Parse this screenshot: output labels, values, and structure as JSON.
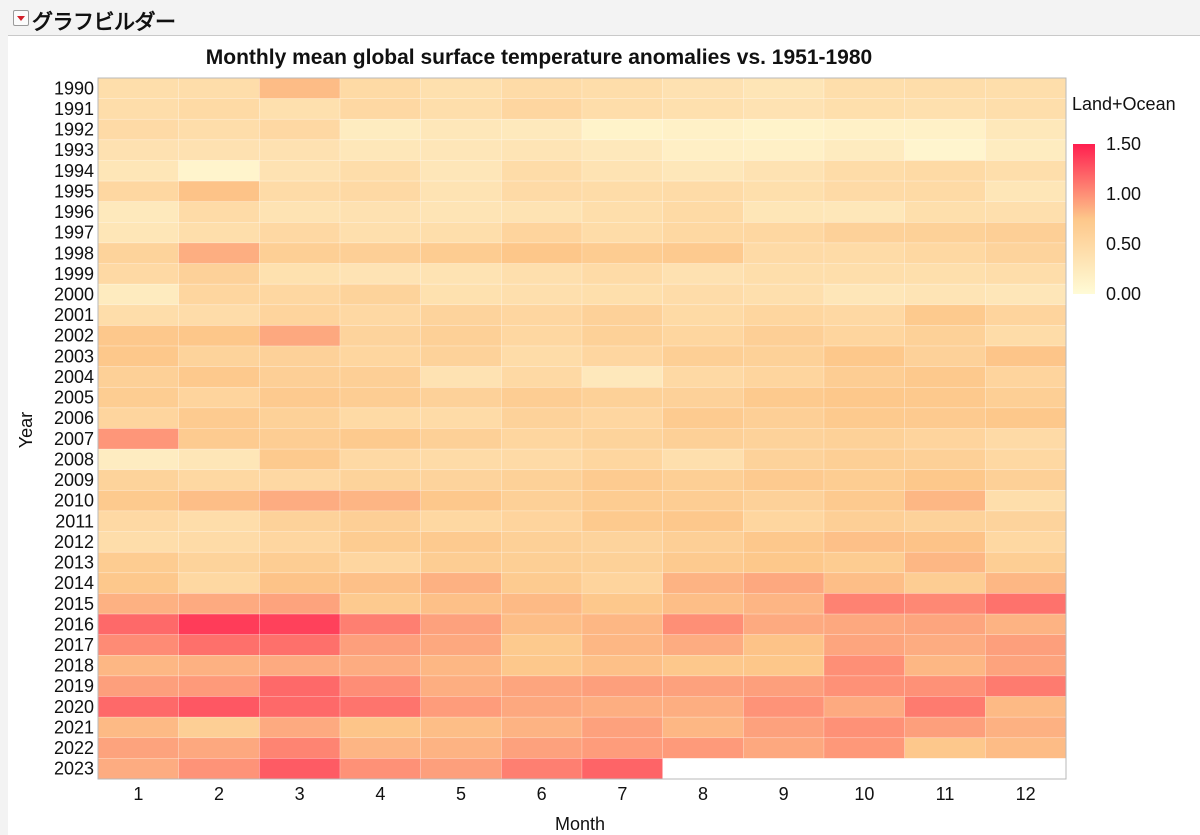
{
  "app": {
    "platform_title": "グラフビルダー"
  },
  "chart_data": {
    "type": "heatmap",
    "title": "Monthly mean global surface temperature anomalies vs. 1951-1980",
    "xlabel": "Month",
    "ylabel": "Year",
    "x_categories": [
      "1",
      "2",
      "3",
      "4",
      "5",
      "6",
      "7",
      "8",
      "9",
      "10",
      "11",
      "12"
    ],
    "y_categories": [
      "1990",
      "1991",
      "1992",
      "1993",
      "1994",
      "1995",
      "1996",
      "1997",
      "1998",
      "1999",
      "2000",
      "2001",
      "2002",
      "2003",
      "2004",
      "2005",
      "2006",
      "2007",
      "2008",
      "2009",
      "2010",
      "2011",
      "2012",
      "2013",
      "2014",
      "2015",
      "2016",
      "2017",
      "2018",
      "2019",
      "2020",
      "2021",
      "2022",
      "2023"
    ],
    "values": [
      [
        0.42,
        0.43,
        0.8,
        0.48,
        0.39,
        0.46,
        0.43,
        0.37,
        0.32,
        0.42,
        0.43,
        0.42
      ],
      [
        0.43,
        0.48,
        0.39,
        0.5,
        0.42,
        0.53,
        0.43,
        0.39,
        0.36,
        0.41,
        0.39,
        0.42
      ],
      [
        0.47,
        0.43,
        0.5,
        0.22,
        0.29,
        0.26,
        0.12,
        0.15,
        0.12,
        0.15,
        0.15,
        0.28
      ],
      [
        0.37,
        0.37,
        0.37,
        0.29,
        0.3,
        0.33,
        0.27,
        0.17,
        0.16,
        0.23,
        0.08,
        0.22
      ],
      [
        0.31,
        0.1,
        0.36,
        0.43,
        0.3,
        0.45,
        0.35,
        0.29,
        0.36,
        0.45,
        0.48,
        0.42
      ],
      [
        0.52,
        0.77,
        0.46,
        0.49,
        0.35,
        0.47,
        0.45,
        0.46,
        0.41,
        0.47,
        0.48,
        0.31
      ],
      [
        0.26,
        0.46,
        0.35,
        0.37,
        0.33,
        0.35,
        0.42,
        0.48,
        0.31,
        0.29,
        0.41,
        0.4
      ],
      [
        0.31,
        0.42,
        0.5,
        0.4,
        0.42,
        0.56,
        0.45,
        0.51,
        0.52,
        0.6,
        0.61,
        0.63
      ],
      [
        0.58,
        0.86,
        0.64,
        0.63,
        0.68,
        0.75,
        0.68,
        0.7,
        0.47,
        0.46,
        0.51,
        0.57
      ],
      [
        0.49,
        0.6,
        0.38,
        0.34,
        0.35,
        0.4,
        0.46,
        0.37,
        0.42,
        0.42,
        0.41,
        0.43
      ],
      [
        0.23,
        0.54,
        0.52,
        0.58,
        0.38,
        0.4,
        0.41,
        0.44,
        0.4,
        0.3,
        0.33,
        0.3
      ],
      [
        0.43,
        0.44,
        0.56,
        0.5,
        0.57,
        0.53,
        0.6,
        0.48,
        0.54,
        0.5,
        0.71,
        0.56
      ],
      [
        0.73,
        0.75,
        0.89,
        0.57,
        0.62,
        0.52,
        0.61,
        0.54,
        0.63,
        0.55,
        0.61,
        0.45
      ],
      [
        0.74,
        0.58,
        0.6,
        0.54,
        0.59,
        0.45,
        0.53,
        0.64,
        0.61,
        0.74,
        0.6,
        0.76
      ],
      [
        0.62,
        0.72,
        0.63,
        0.63,
        0.36,
        0.49,
        0.27,
        0.49,
        0.55,
        0.66,
        0.72,
        0.56
      ],
      [
        0.67,
        0.56,
        0.7,
        0.66,
        0.6,
        0.66,
        0.61,
        0.6,
        0.71,
        0.74,
        0.72,
        0.64
      ],
      [
        0.55,
        0.69,
        0.61,
        0.48,
        0.46,
        0.59,
        0.53,
        0.69,
        0.63,
        0.71,
        0.7,
        0.74
      ],
      [
        0.97,
        0.69,
        0.66,
        0.71,
        0.62,
        0.54,
        0.58,
        0.62,
        0.59,
        0.61,
        0.56,
        0.47
      ],
      [
        0.21,
        0.31,
        0.71,
        0.49,
        0.46,
        0.47,
        0.54,
        0.4,
        0.59,
        0.64,
        0.62,
        0.51
      ],
      [
        0.58,
        0.51,
        0.5,
        0.58,
        0.57,
        0.61,
        0.69,
        0.64,
        0.7,
        0.67,
        0.74,
        0.62
      ],
      [
        0.71,
        0.79,
        0.87,
        0.83,
        0.73,
        0.62,
        0.68,
        0.66,
        0.6,
        0.7,
        0.82,
        0.42
      ],
      [
        0.49,
        0.43,
        0.59,
        0.63,
        0.51,
        0.56,
        0.71,
        0.73,
        0.54,
        0.63,
        0.59,
        0.57
      ],
      [
        0.43,
        0.46,
        0.53,
        0.68,
        0.7,
        0.62,
        0.57,
        0.63,
        0.73,
        0.78,
        0.77,
        0.51
      ],
      [
        0.68,
        0.58,
        0.66,
        0.53,
        0.66,
        0.64,
        0.61,
        0.7,
        0.74,
        0.68,
        0.82,
        0.65
      ],
      [
        0.73,
        0.51,
        0.77,
        0.78,
        0.85,
        0.69,
        0.56,
        0.84,
        0.89,
        0.79,
        0.66,
        0.82
      ],
      [
        0.85,
        0.88,
        0.91,
        0.7,
        0.78,
        0.81,
        0.73,
        0.79,
        0.83,
        1.06,
        1.03,
        1.13
      ],
      [
        1.17,
        1.37,
        1.35,
        1.07,
        0.92,
        0.79,
        0.82,
        1.0,
        0.88,
        0.89,
        0.9,
        0.84
      ],
      [
        1.02,
        1.14,
        1.14,
        0.93,
        0.89,
        0.71,
        0.82,
        0.87,
        0.77,
        0.9,
        0.87,
        0.93
      ],
      [
        0.82,
        0.85,
        0.88,
        0.87,
        0.82,
        0.73,
        0.78,
        0.73,
        0.75,
        1.0,
        0.82,
        0.91
      ],
      [
        0.93,
        0.95,
        1.17,
        1.01,
        0.86,
        0.9,
        0.93,
        0.92,
        0.93,
        0.99,
        0.99,
        1.09
      ],
      [
        1.17,
        1.25,
        1.17,
        1.12,
        0.94,
        0.89,
        0.86,
        0.86,
        0.98,
        0.88,
        1.09,
        0.81
      ],
      [
        0.81,
        0.64,
        0.88,
        0.76,
        0.79,
        0.84,
        0.92,
        0.82,
        0.92,
        0.99,
        0.93,
        0.85
      ],
      [
        0.91,
        0.89,
        1.05,
        0.83,
        0.84,
        0.92,
        0.94,
        0.95,
        0.89,
        0.96,
        0.73,
        0.8
      ],
      [
        0.87,
        0.98,
        1.23,
        0.99,
        0.93,
        1.07,
        1.19,
        null,
        null,
        null,
        null,
        null
      ]
    ],
    "color_scale": {
      "title": "Land+Ocean",
      "min": 0.0,
      "max": 1.5,
      "ticks": [
        "1.50",
        "1.00",
        "0.50",
        "0.00"
      ],
      "low_color": "#fffbd6",
      "mid_color": "#fdc78a",
      "high_color": "#ff1f4f"
    },
    "legend_position": "right",
    "grid": false
  }
}
